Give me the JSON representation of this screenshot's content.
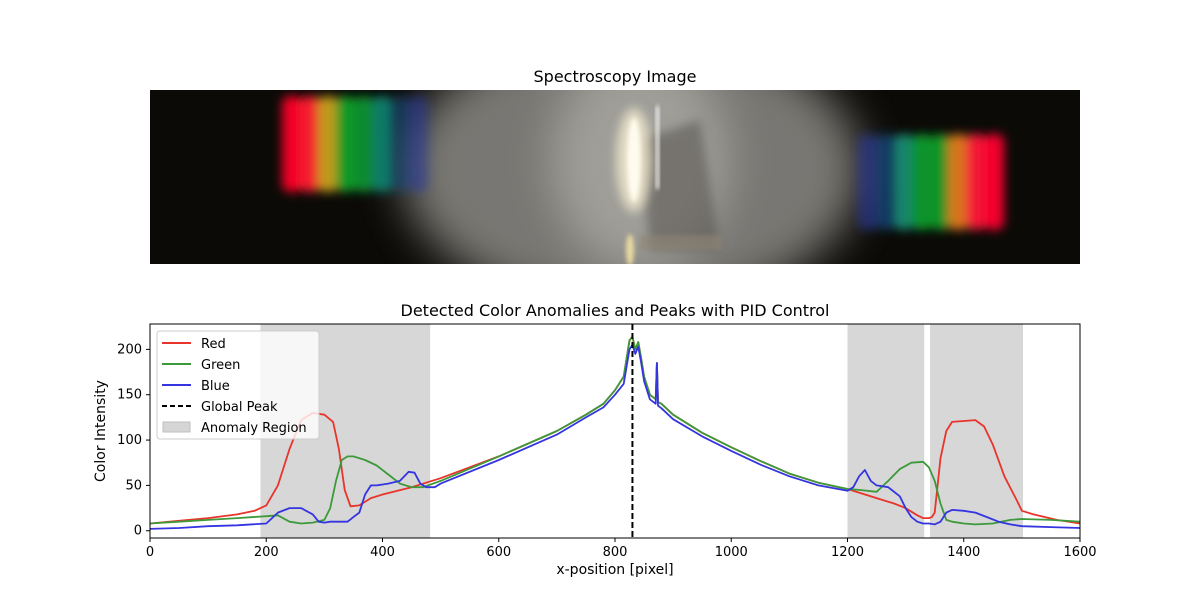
{
  "chart_data": [
    {
      "type": "image",
      "title": "Spectroscopy Image",
      "description_colors": {
        "background": "#0b0a07",
        "glow": "#8a8a84",
        "source": "#fffbe8"
      },
      "left_spectrum_bands": [
        {
          "color": "#ff0028"
        },
        {
          "color": "#ff2030"
        },
        {
          "color": "#c8a020"
        },
        {
          "color": "#12a028"
        },
        {
          "color": "#0c9030"
        },
        {
          "color": "#12806a"
        },
        {
          "color": "#1a4a80"
        },
        {
          "color": "#283aa0"
        }
      ],
      "right_spectrum_bands": [
        {
          "color": "#2a3aa8"
        },
        {
          "color": "#1a5aa0"
        },
        {
          "color": "#148a70"
        },
        {
          "color": "#0c9a2a"
        },
        {
          "color": "#109a26"
        },
        {
          "color": "#e07a20"
        },
        {
          "color": "#ff1838"
        },
        {
          "color": "#ff0030"
        }
      ]
    },
    {
      "type": "line",
      "title": "Detected Color Anomalies and Peaks with PID Control",
      "xlabel": "x-position [pixel]",
      "ylabel": "Color Intensity",
      "xlim": [
        0,
        1600
      ],
      "ylim": [
        -8,
        228
      ],
      "xticks": [
        0,
        200,
        400,
        600,
        800,
        1000,
        1200,
        1400,
        1600
      ],
      "yticks": [
        0,
        50,
        100,
        150,
        200
      ],
      "legend_position": "upper-left",
      "global_peak_x": 830,
      "anomaly_regions": [
        {
          "start": 190,
          "end": 482
        },
        {
          "start": 1200,
          "end": 1332
        },
        {
          "start": 1342,
          "end": 1502
        }
      ],
      "series": [
        {
          "name": "Red",
          "color": "#e8342a",
          "x": [
            0,
            50,
            100,
            150,
            180,
            200,
            220,
            240,
            260,
            280,
            300,
            315,
            325,
            335,
            345,
            360,
            380,
            400,
            450,
            500,
            600,
            700,
            750,
            780,
            800,
            815,
            825,
            830,
            835,
            840,
            845,
            850,
            860,
            870,
            872,
            874,
            880,
            900,
            950,
            1000,
            1050,
            1100,
            1150,
            1200,
            1250,
            1280,
            1300,
            1320,
            1330,
            1340,
            1345,
            1350,
            1360,
            1370,
            1380,
            1400,
            1420,
            1435,
            1450,
            1470,
            1490,
            1500,
            1520,
            1560,
            1600
          ],
          "y": [
            8,
            11,
            14,
            18,
            22,
            28,
            50,
            90,
            122,
            130,
            128,
            120,
            90,
            45,
            27,
            28,
            36,
            40,
            48,
            58,
            82,
            110,
            128,
            140,
            155,
            170,
            210,
            214,
            200,
            208,
            190,
            170,
            150,
            145,
            185,
            142,
            140,
            128,
            108,
            92,
            77,
            63,
            53,
            46,
            36,
            30,
            25,
            17,
            14,
            14,
            15,
            20,
            80,
            110,
            120,
            121,
            122,
            115,
            95,
            60,
            35,
            22,
            18,
            12,
            8
          ]
        },
        {
          "name": "Green",
          "color": "#3c9a3a",
          "x": [
            0,
            50,
            100,
            150,
            200,
            220,
            240,
            260,
            280,
            300,
            310,
            320,
            330,
            340,
            350,
            370,
            390,
            410,
            430,
            450,
            470,
            500,
            600,
            700,
            750,
            780,
            800,
            815,
            825,
            830,
            835,
            840,
            845,
            850,
            860,
            870,
            872,
            874,
            880,
            900,
            950,
            1000,
            1050,
            1100,
            1150,
            1200,
            1220,
            1250,
            1270,
            1290,
            1310,
            1330,
            1340,
            1350,
            1360,
            1370,
            1380,
            1400,
            1420,
            1450,
            1480,
            1500,
            1550,
            1600
          ],
          "y": [
            8,
            10,
            12,
            14,
            16,
            17,
            10,
            8,
            9,
            12,
            25,
            55,
            78,
            82,
            82,
            78,
            72,
            62,
            52,
            48,
            48,
            55,
            82,
            110,
            128,
            140,
            155,
            170,
            210,
            214,
            200,
            208,
            190,
            170,
            150,
            145,
            185,
            142,
            140,
            128,
            108,
            92,
            77,
            63,
            53,
            46,
            45,
            43,
            55,
            68,
            75,
            76,
            70,
            55,
            30,
            12,
            10,
            8,
            7,
            8,
            12,
            13,
            12,
            10
          ]
        },
        {
          "name": "Blue",
          "color": "#3434e0",
          "x": [
            0,
            50,
            100,
            150,
            200,
            220,
            240,
            260,
            280,
            290,
            300,
            310,
            320,
            330,
            340,
            350,
            360,
            370,
            380,
            390,
            410,
            430,
            445,
            455,
            465,
            475,
            490,
            500,
            600,
            700,
            750,
            780,
            800,
            815,
            825,
            830,
            835,
            840,
            845,
            850,
            860,
            870,
            872,
            874,
            880,
            900,
            950,
            1000,
            1050,
            1100,
            1150,
            1200,
            1210,
            1220,
            1230,
            1240,
            1250,
            1270,
            1290,
            1300,
            1310,
            1320,
            1330,
            1340,
            1350,
            1360,
            1370,
            1380,
            1400,
            1420,
            1440,
            1460,
            1480,
            1500,
            1550,
            1600
          ],
          "y": [
            2,
            3,
            5,
            6,
            8,
            20,
            25,
            25,
            18,
            10,
            9,
            10,
            10,
            10,
            10,
            15,
            20,
            40,
            50,
            50,
            52,
            55,
            65,
            64,
            52,
            48,
            48,
            52,
            78,
            106,
            125,
            136,
            150,
            162,
            200,
            205,
            195,
            203,
            185,
            165,
            145,
            140,
            185,
            138,
            135,
            123,
            104,
            88,
            73,
            60,
            50,
            44,
            48,
            60,
            67,
            55,
            50,
            48,
            38,
            25,
            15,
            10,
            8,
            8,
            7,
            10,
            20,
            23,
            22,
            20,
            15,
            10,
            7,
            5,
            4,
            3
          ]
        },
        {
          "name": "Global Peak",
          "color": "#000000",
          "style": "dashed"
        },
        {
          "name": "Anomaly Region",
          "color": "#d5d5d5",
          "style": "patch"
        }
      ]
    }
  ]
}
